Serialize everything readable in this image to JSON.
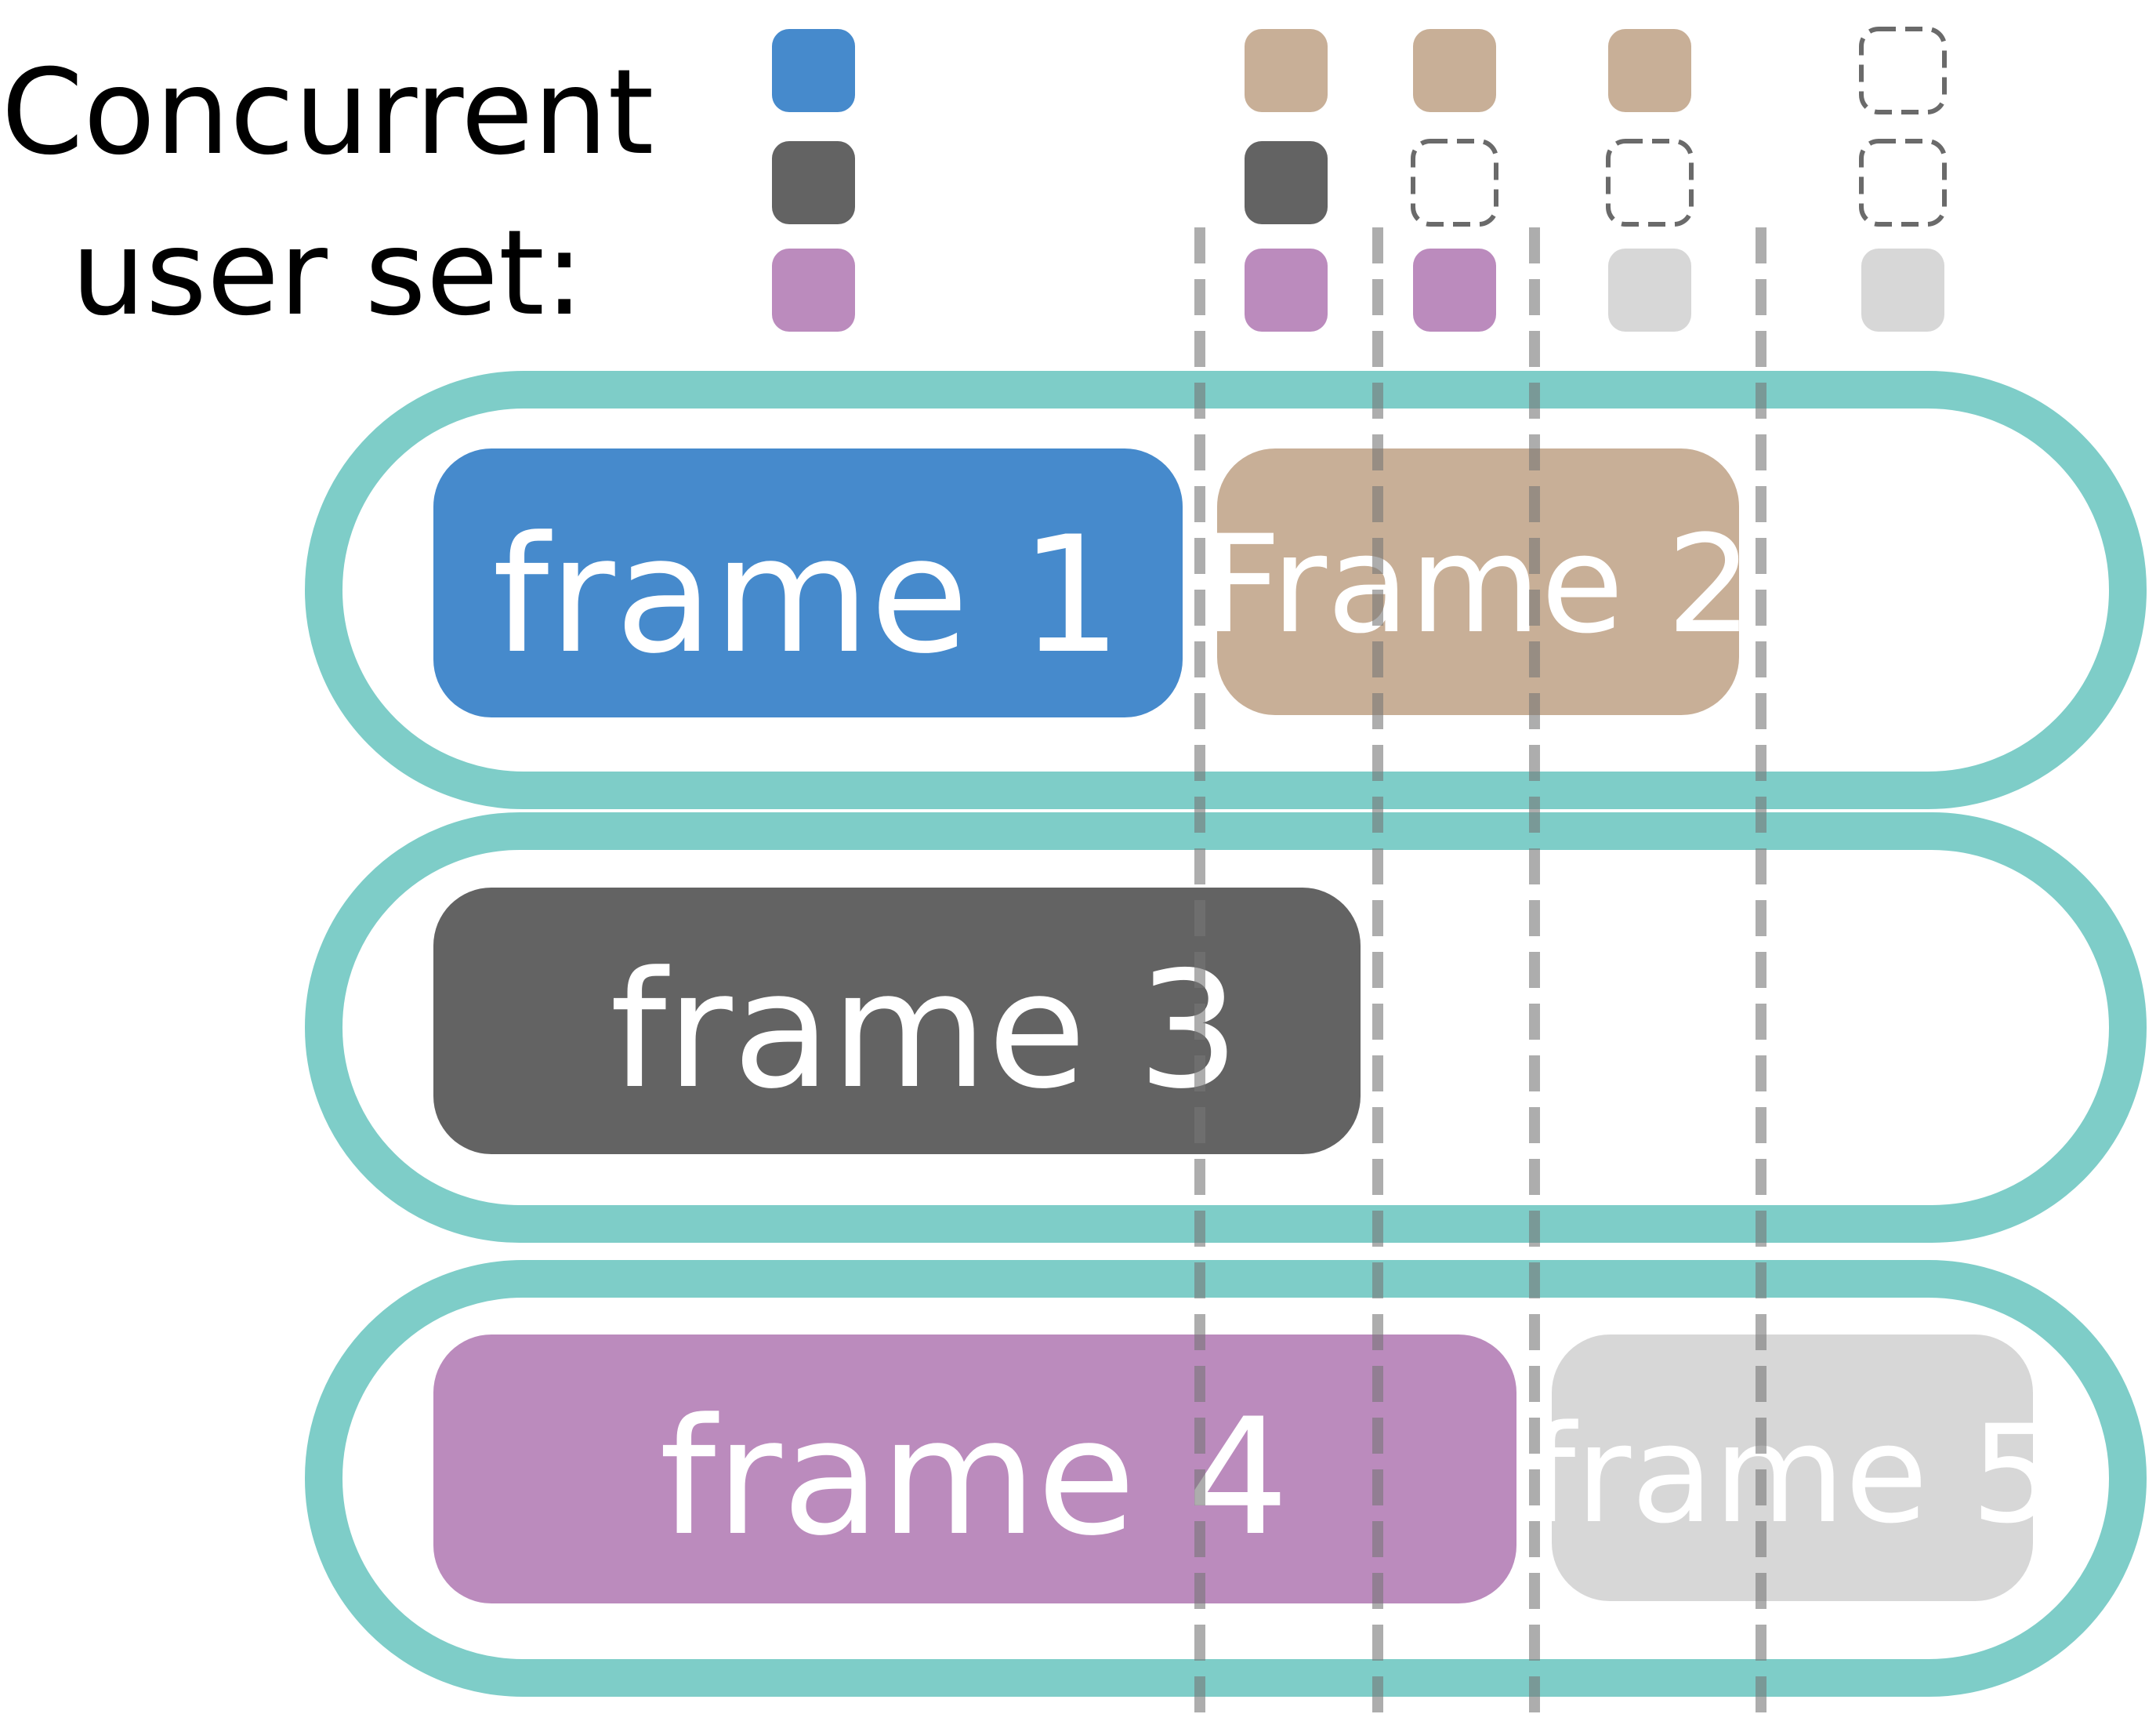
{
  "header": {
    "title_line1": "Concurrent",
    "title_line2": "user set:"
  },
  "colors": {
    "teal": "#7ECDC8",
    "blue": "#468ACC",
    "tan": "#C8AF97",
    "dark_gray": "#636363",
    "purple": "#BB8BBD",
    "light_gray": "#D7D7D7",
    "divider": "#9E9E9E"
  },
  "user_sets": [
    [
      "blue",
      "dark_gray",
      "purple"
    ],
    [
      "tan",
      "dark_gray",
      "purple"
    ],
    [
      "tan",
      "empty",
      "purple"
    ],
    [
      "tan",
      "empty",
      "light_gray"
    ],
    [
      "empty",
      "empty",
      "light_gray"
    ]
  ],
  "frames": [
    {
      "label": "frame 1",
      "color": "blue"
    },
    {
      "label": "Frame 2",
      "color": "tan"
    },
    {
      "label": "frame 3",
      "color": "dark_gray"
    },
    {
      "label": "frame 4",
      "color": "purple"
    },
    {
      "label": "frame 5",
      "color": "light_gray"
    }
  ]
}
